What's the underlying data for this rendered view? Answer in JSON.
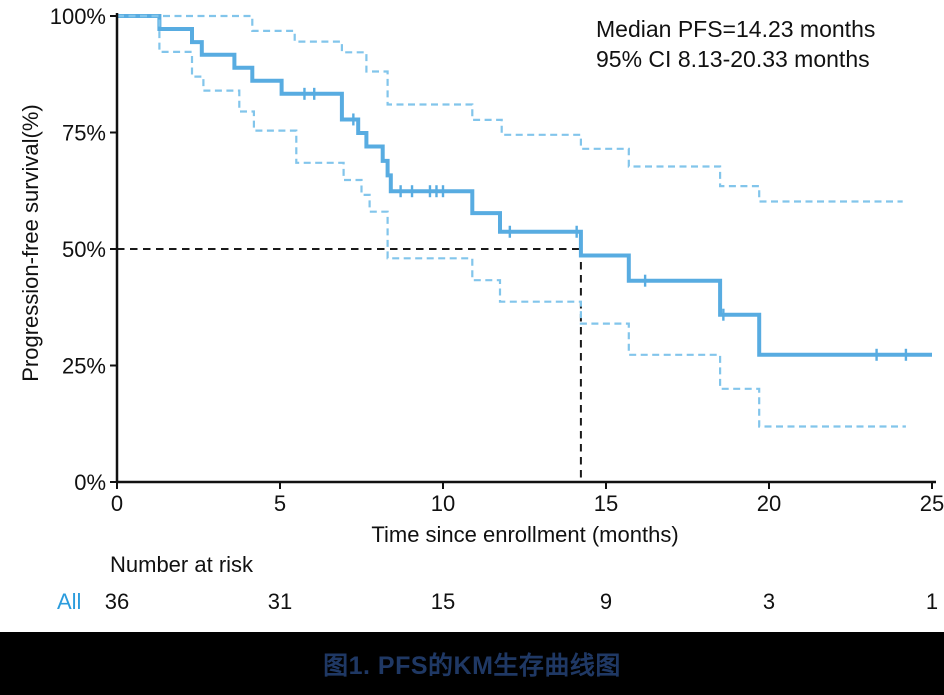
{
  "figure": {
    "annotation": {
      "line1": "Median PFS=14.23 months",
      "line2": "95% CI 8.13-20.33 months"
    },
    "y_axis_title": "Progression-free survival(%)",
    "x_axis_title": "Time since enrollment (months)",
    "risk_table": {
      "header": "Number at risk",
      "group_label": "All",
      "times": [
        0,
        5,
        10,
        15,
        20,
        25
      ],
      "counts": [
        "36",
        "31",
        "15",
        "9",
        "3",
        "1"
      ]
    },
    "caption": "图1. PFS的KM生存曲线图"
  },
  "colors": {
    "km_line": "#58ACE1",
    "ci_line": "#82C5EB",
    "reference_dash": "#1a1a1a",
    "axis": "#111111",
    "risk_group_label": "#2B9CDD",
    "caption_text": "#1F3864",
    "caption_band_bg": "#000000"
  },
  "chart_data": {
    "type": "line",
    "subtype": "kaplan-meier-step",
    "title": "",
    "xlabel": "Time since enrollment (months)",
    "ylabel": "Progression-free survival(%)",
    "xlim": [
      0,
      25
    ],
    "ylim": [
      0,
      100
    ],
    "grid": false,
    "legend_position": "none",
    "x_ticks": [
      {
        "v": 0,
        "label": "0"
      },
      {
        "v": 5,
        "label": "5"
      },
      {
        "v": 10,
        "label": "10"
      },
      {
        "v": 15,
        "label": "15"
      },
      {
        "v": 20,
        "label": "20"
      },
      {
        "v": 25,
        "label": "25"
      }
    ],
    "y_ticks": [
      {
        "v": 0,
        "label": "0%"
      },
      {
        "v": 25,
        "label": "25%"
      },
      {
        "v": 50,
        "label": "50%"
      },
      {
        "v": 75,
        "label": "75%"
      },
      {
        "v": 100,
        "label": "100%"
      }
    ],
    "series": [
      {
        "name": "KM estimate (All)",
        "style": "solid",
        "points": [
          [
            0,
            100
          ],
          [
            1.3,
            97.2
          ],
          [
            2.3,
            94.4
          ],
          [
            2.6,
            91.7
          ],
          [
            3.6,
            88.9
          ],
          [
            4.15,
            86.1
          ],
          [
            5.05,
            83.3
          ],
          [
            6.9,
            77.8
          ],
          [
            7.4,
            74.9
          ],
          [
            7.65,
            72.0
          ],
          [
            8.15,
            68.9
          ],
          [
            8.3,
            65.8
          ],
          [
            8.4,
            62.4
          ],
          [
            10.9,
            57.7
          ],
          [
            11.75,
            53.7
          ],
          [
            14.23,
            48.6
          ],
          [
            15.7,
            43.2
          ],
          [
            18.5,
            35.9
          ],
          [
            19.7,
            27.3
          ]
        ],
        "end_time": 25.0
      },
      {
        "name": "95% CI upper",
        "style": "dashed",
        "points": [
          [
            0,
            100
          ],
          [
            4.15,
            96.8
          ],
          [
            5.45,
            94.5
          ],
          [
            6.9,
            92.2
          ],
          [
            7.65,
            88.1
          ],
          [
            8.3,
            81.0
          ],
          [
            10.9,
            77.7
          ],
          [
            11.8,
            74.5
          ],
          [
            14.23,
            71.5
          ],
          [
            15.7,
            67.7
          ],
          [
            18.5,
            63.5
          ],
          [
            19.7,
            60.2
          ]
        ],
        "end_time": 24.1
      },
      {
        "name": "95% CI lower",
        "style": "dashed",
        "points": [
          [
            0,
            100
          ],
          [
            1.3,
            92.3
          ],
          [
            2.3,
            87.0
          ],
          [
            2.65,
            84.0
          ],
          [
            3.75,
            79.5
          ],
          [
            4.2,
            75.4
          ],
          [
            5.5,
            68.5
          ],
          [
            6.95,
            64.8
          ],
          [
            7.5,
            61.6
          ],
          [
            7.75,
            58.0
          ],
          [
            8.3,
            48.0
          ],
          [
            10.9,
            43.3
          ],
          [
            11.75,
            38.7
          ],
          [
            14.23,
            34.0
          ],
          [
            15.7,
            27.3
          ],
          [
            18.5,
            20.0
          ],
          [
            19.7,
            11.9
          ]
        ],
        "end_time": 24.2
      }
    ],
    "censor_marks": [
      [
        5.75,
        83.3
      ],
      [
        6.05,
        83.3
      ],
      [
        7.25,
        77.8
      ],
      [
        8.7,
        62.4
      ],
      [
        9.05,
        62.4
      ],
      [
        9.6,
        62.4
      ],
      [
        9.8,
        62.4
      ],
      [
        10.0,
        62.4
      ],
      [
        12.05,
        53.7
      ],
      [
        14.1,
        53.7
      ],
      [
        16.2,
        43.2
      ],
      [
        18.6,
        35.9
      ],
      [
        23.3,
        27.3
      ],
      [
        24.2,
        27.3
      ]
    ],
    "reference_lines": {
      "median_time": 14.23,
      "survival_pct": 50
    },
    "annotations": [
      "Median PFS=14.23 months",
      "95% CI 8.13-20.33 months"
    ],
    "number_at_risk": {
      "group": "All",
      "times": [
        0,
        5,
        10,
        15,
        20,
        25
      ],
      "counts": [
        36,
        31,
        15,
        9,
        3,
        1
      ]
    }
  }
}
